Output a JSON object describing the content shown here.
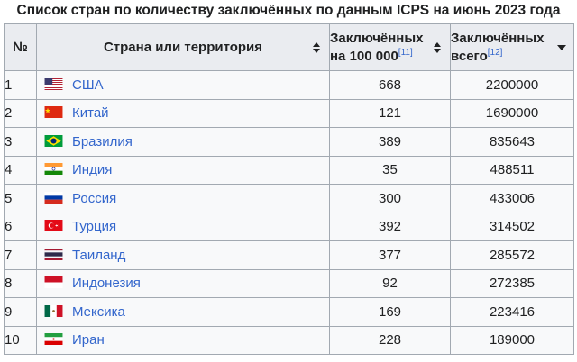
{
  "caption": "Список стран по количеству заключённых по данным ICPS на июнь 2023 года",
  "header": {
    "num": "№",
    "country": "Страна или территория",
    "rate_line1": "Заключённых",
    "rate_line2": "на 100 000",
    "rate_ref": "[11]",
    "total_line1": "Заключённых",
    "total_line2": "всего",
    "total_ref": "[12]"
  },
  "rows": [
    {
      "num": "1",
      "country": "США",
      "flag": "us-flag-icon",
      "rate": "668",
      "total": "2200000"
    },
    {
      "num": "2",
      "country": "Китай",
      "flag": "cn-flag-icon",
      "rate": "121",
      "total": "1690000"
    },
    {
      "num": "3",
      "country": "Бразилия",
      "flag": "br-flag-icon",
      "rate": "389",
      "total": "835643"
    },
    {
      "num": "4",
      "country": "Индия",
      "flag": "in-flag-icon",
      "rate": "35",
      "total": "488511"
    },
    {
      "num": "5",
      "country": "Россия",
      "flag": "ru-flag-icon",
      "rate": "300",
      "total": "433006"
    },
    {
      "num": "6",
      "country": "Турция",
      "flag": "tr-flag-icon",
      "rate": "392",
      "total": "314502"
    },
    {
      "num": "7",
      "country": "Таиланд",
      "flag": "th-flag-icon",
      "rate": "377",
      "total": "285572"
    },
    {
      "num": "8",
      "country": "Индонезия",
      "flag": "id-flag-icon",
      "rate": "92",
      "total": "272385"
    },
    {
      "num": "9",
      "country": "Мексика",
      "flag": "mx-flag-icon",
      "rate": "169",
      "total": "223416"
    },
    {
      "num": "10",
      "country": "Иран",
      "flag": "ir-flag-icon",
      "rate": "228",
      "total": "189000"
    }
  ],
  "colors": {
    "link": "#3366cc",
    "header_bg": "#eaecf0",
    "cell_bg": "#f8f9fa",
    "border": "#a2a9b1"
  }
}
